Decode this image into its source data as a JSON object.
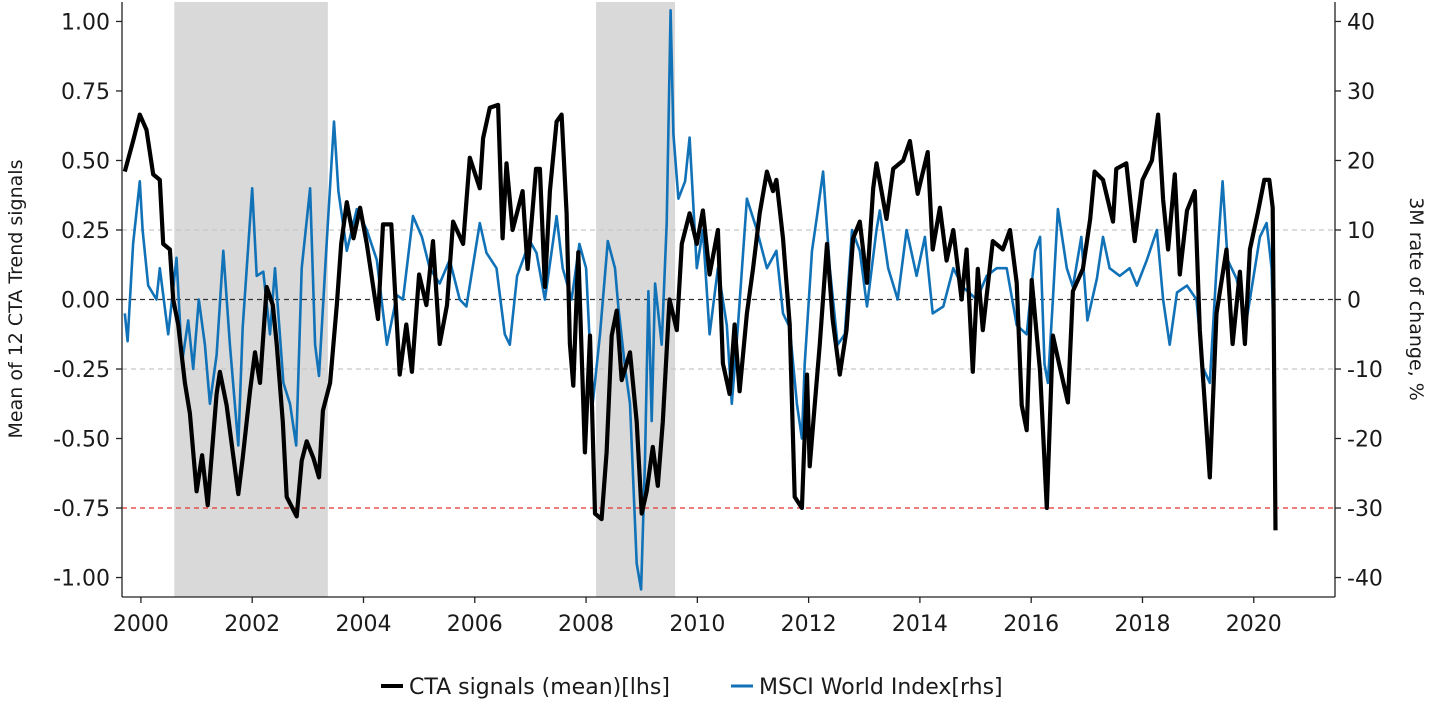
{
  "chart_data": {
    "type": "line",
    "title": "",
    "xlabel": "",
    "ylabel_left": "Mean of 12 CTA Trend signals",
    "ylabel_right": "3M rate of change, %",
    "xlim": [
      1999.66,
      2021.46
    ],
    "ylim_left": [
      -1.07,
      1.07
    ],
    "ylim_right": [
      -42.8,
      42.8
    ],
    "x_ticks": [
      "2000",
      "2002",
      "2004",
      "2006",
      "2008",
      "2010",
      "2012",
      "2014",
      "2016",
      "2018",
      "2020"
    ],
    "y_ticks_left": [
      "-1.00",
      "-0.75",
      "-0.50",
      "-0.25",
      "0.00",
      "0.25",
      "0.50",
      "0.75",
      "1.00"
    ],
    "y_ticks_right": [
      "-40",
      "-30",
      "-20",
      "-10",
      "0",
      "10",
      "20",
      "30",
      "40"
    ],
    "grid": false,
    "legend_position": "bottom",
    "reference_lines_left": [
      {
        "y": 0.25,
        "color": "#c8c8c8",
        "style": "dashed"
      },
      {
        "y": -0.25,
        "color": "#c8c8c8",
        "style": "dashed"
      },
      {
        "y": 0.0,
        "color": "#333333",
        "style": "dashed"
      },
      {
        "y": -0.75,
        "color": "#e8312f",
        "style": "dashed"
      }
    ],
    "shaded_periods": [
      {
        "start": 2000.6,
        "end": 2003.36,
        "color": "#d9d9d9"
      },
      {
        "start": 2008.18,
        "end": 2009.6,
        "color": "#d9d9d9"
      }
    ],
    "series": [
      {
        "name": "CTA signals (mean)[lhs]",
        "axis": "left",
        "color": "#000000",
        "x": [
          1999.71,
          1999.86,
          1999.98,
          2000.1,
          2000.22,
          2000.34,
          2000.4,
          2000.52,
          2000.58,
          2000.67,
          2000.79,
          2000.88,
          2001.0,
          2001.1,
          2001.2,
          2001.36,
          2001.42,
          2001.54,
          2001.75,
          2001.83,
          2001.96,
          2002.05,
          2002.14,
          2002.26,
          2002.37,
          2002.44,
          2002.55,
          2002.62,
          2002.8,
          2002.89,
          2002.98,
          2003.1,
          2003.2,
          2003.27,
          2003.4,
          2003.52,
          2003.6,
          2003.7,
          2003.82,
          2003.94,
          2004.06,
          2004.26,
          2004.35,
          2004.5,
          2004.65,
          2004.77,
          2004.87,
          2005.0,
          2005.13,
          2005.25,
          2005.37,
          2005.5,
          2005.61,
          2005.79,
          2005.91,
          2006.09,
          2006.15,
          2006.27,
          2006.42,
          2006.5,
          2006.57,
          2006.68,
          2006.86,
          2006.95,
          2007.1,
          2007.17,
          2007.26,
          2007.35,
          2007.47,
          2007.56,
          2007.65,
          2007.71,
          2007.77,
          2007.86,
          2007.98,
          2008.07,
          2008.16,
          2008.28,
          2008.37,
          2008.46,
          2008.55,
          2008.64,
          2008.79,
          2008.91,
          2009.0,
          2009.09,
          2009.2,
          2009.29,
          2009.38,
          2009.5,
          2009.63,
          2009.72,
          2009.86,
          2009.99,
          2010.1,
          2010.22,
          2010.37,
          2010.46,
          2010.58,
          2010.67,
          2010.76,
          2010.89,
          2011.0,
          2011.12,
          2011.25,
          2011.36,
          2011.42,
          2011.54,
          2011.66,
          2011.75,
          2011.88,
          2011.97,
          2012.02,
          2012.11,
          2012.2,
          2012.33,
          2012.43,
          2012.56,
          2012.68,
          2012.8,
          2012.92,
          2013.05,
          2013.16,
          2013.22,
          2013.4,
          2013.52,
          2013.7,
          2013.82,
          2013.96,
          2014.14,
          2014.23,
          2014.36,
          2014.48,
          2014.6,
          2014.75,
          2014.84,
          2014.95,
          2015.04,
          2015.13,
          2015.31,
          2015.49,
          2015.62,
          2015.74,
          2015.83,
          2015.92,
          2016.01,
          2016.16,
          2016.28,
          2016.39,
          2016.51,
          2016.66,
          2016.75,
          2016.93,
          2017.06,
          2017.14,
          2017.29,
          2017.47,
          2017.53,
          2017.71,
          2017.86,
          2018.0,
          2018.17,
          2018.28,
          2018.37,
          2018.46,
          2018.58,
          2018.67,
          2018.8,
          2018.94,
          2019.03,
          2019.21,
          2019.33,
          2019.51,
          2019.62,
          2019.75,
          2019.84,
          2019.93,
          2020.07,
          2020.19,
          2020.28,
          2020.34,
          2020.37,
          2020.39
        ],
        "y": [
          0.46,
          0.57,
          0.665,
          0.61,
          0.45,
          0.43,
          0.2,
          0.18,
          0.0,
          -0.09,
          -0.3,
          -0.41,
          -0.69,
          -0.56,
          -0.74,
          -0.34,
          -0.26,
          -0.38,
          -0.7,
          -0.57,
          -0.33,
          -0.19,
          -0.3,
          0.045,
          -0.02,
          -0.16,
          -0.44,
          -0.71,
          -0.78,
          -0.58,
          -0.51,
          -0.57,
          -0.64,
          -0.4,
          -0.3,
          -0.02,
          0.2,
          0.35,
          0.22,
          0.33,
          0.2,
          -0.07,
          0.27,
          0.27,
          -0.27,
          -0.09,
          -0.26,
          0.09,
          -0.02,
          0.21,
          -0.16,
          -0.02,
          0.28,
          0.2,
          0.51,
          0.4,
          0.58,
          0.69,
          0.7,
          0.22,
          0.49,
          0.25,
          0.39,
          0.11,
          0.47,
          0.47,
          0.045,
          0.39,
          0.64,
          0.665,
          0.31,
          -0.16,
          -0.31,
          0.17,
          -0.55,
          -0.13,
          -0.77,
          -0.79,
          -0.55,
          -0.13,
          -0.04,
          -0.29,
          -0.19,
          -0.44,
          -0.77,
          -0.69,
          -0.53,
          -0.67,
          -0.44,
          0.0,
          -0.11,
          0.2,
          0.31,
          0.2,
          0.32,
          0.09,
          0.25,
          -0.23,
          -0.34,
          -0.09,
          -0.33,
          -0.05,
          0.11,
          0.31,
          0.46,
          0.39,
          0.43,
          0.22,
          -0.09,
          -0.71,
          -0.75,
          -0.27,
          -0.6,
          -0.38,
          -0.16,
          0.2,
          -0.07,
          -0.27,
          -0.11,
          0.22,
          0.28,
          0.06,
          0.4,
          0.49,
          0.29,
          0.47,
          0.5,
          0.57,
          0.38,
          0.53,
          0.18,
          0.33,
          0.14,
          0.25,
          0.0,
          0.18,
          -0.26,
          0.11,
          -0.11,
          0.21,
          0.18,
          0.25,
          0.06,
          -0.38,
          -0.47,
          0.07,
          -0.26,
          -0.75,
          -0.13,
          -0.24,
          -0.37,
          0.03,
          0.11,
          0.29,
          0.46,
          0.43,
          0.28,
          0.47,
          0.49,
          0.21,
          0.43,
          0.5,
          0.665,
          0.36,
          0.18,
          0.45,
          0.09,
          0.32,
          0.39,
          -0.11,
          -0.64,
          -0.05,
          0.18,
          -0.16,
          0.1,
          -0.16,
          0.18,
          0.31,
          0.43,
          0.43,
          0.33,
          -0.33,
          -0.83
        ]
      },
      {
        "name": "MSCI World Index[rhs]",
        "axis": "right",
        "color": "#1172b8",
        "x": [
          1999.71,
          1999.76,
          1999.86,
          1999.98,
          2000.03,
          2000.13,
          2000.28,
          2000.34,
          2000.49,
          2000.64,
          2000.74,
          2000.85,
          2000.94,
          2001.04,
          2001.15,
          2001.24,
          2001.36,
          2001.48,
          2001.6,
          2001.75,
          2001.83,
          2002.0,
          2002.08,
          2002.2,
          2002.32,
          2002.41,
          2002.56,
          2002.68,
          2002.79,
          2002.89,
          2003.04,
          2003.13,
          2003.2,
          2003.33,
          2003.47,
          2003.55,
          2003.7,
          2003.88,
          2004.06,
          2004.24,
          2004.42,
          2004.6,
          2004.71,
          2004.89,
          2005.05,
          2005.19,
          2005.37,
          2005.55,
          2005.73,
          2005.85,
          2006.09,
          2006.21,
          2006.39,
          2006.54,
          2006.63,
          2006.76,
          2006.99,
          2007.11,
          2007.26,
          2007.47,
          2007.58,
          2007.74,
          2007.88,
          2008.0,
          2008.12,
          2008.25,
          2008.39,
          2008.52,
          2008.58,
          2008.7,
          2008.79,
          2008.91,
          2008.99,
          2009.06,
          2009.12,
          2009.18,
          2009.24,
          2009.36,
          2009.45,
          2009.52,
          2009.57,
          2009.66,
          2009.78,
          2009.86,
          2009.99,
          2010.1,
          2010.22,
          2010.37,
          2010.53,
          2010.62,
          2010.73,
          2010.89,
          2011.07,
          2011.25,
          2011.42,
          2011.54,
          2011.66,
          2011.79,
          2011.88,
          2011.93,
          2012.06,
          2012.15,
          2012.26,
          2012.38,
          2012.52,
          2012.65,
          2012.78,
          2012.92,
          2013.05,
          2013.22,
          2013.28,
          2013.43,
          2013.6,
          2013.76,
          2013.94,
          2014.09,
          2014.23,
          2014.42,
          2014.6,
          2014.77,
          2015.02,
          2015.2,
          2015.38,
          2015.56,
          2015.74,
          2015.92,
          2016.07,
          2016.16,
          2016.24,
          2016.3,
          2016.39,
          2016.48,
          2016.64,
          2016.75,
          2016.9,
          2017.01,
          2017.18,
          2017.29,
          2017.41,
          2017.59,
          2017.77,
          2017.9,
          2018.08,
          2018.26,
          2018.37,
          2018.49,
          2018.62,
          2018.8,
          2018.97,
          2019.08,
          2019.21,
          2019.33,
          2019.44,
          2019.53,
          2019.69,
          2019.87,
          2020.02,
          2020.11,
          2020.23,
          2020.32,
          2020.37
        ],
        "y": [
          -2,
          -6,
          8,
          17,
          10,
          2,
          0,
          4.5,
          -5,
          6,
          -9,
          -3,
          -10,
          0,
          -6.5,
          -15,
          -8,
          7,
          -6.5,
          -21,
          -4,
          16,
          3.4,
          4,
          -5,
          4.5,
          -12,
          -15,
          -21,
          4.5,
          16,
          -6.5,
          -11,
          7,
          25.6,
          15.6,
          7,
          13,
          10,
          5.7,
          -6.5,
          0.6,
          0,
          12,
          9,
          4.5,
          2.3,
          5.7,
          0,
          -1,
          11,
          6.7,
          4.5,
          -5,
          -6.5,
          3.4,
          8.4,
          6.7,
          0,
          12,
          4.5,
          0,
          8,
          4.5,
          -15,
          -5,
          8.4,
          4.5,
          -1,
          -9.7,
          -15,
          -38,
          -41.7,
          -23,
          1.2,
          -17.5,
          2.3,
          -6.5,
          11,
          41.6,
          23.8,
          14.5,
          17,
          23.3,
          4.5,
          10,
          -5,
          4.5,
          -3.7,
          -15,
          -3.7,
          14.5,
          10,
          4.5,
          7,
          -2,
          -4,
          -15,
          -20,
          -9.3,
          7,
          12,
          18.4,
          4.5,
          -6.5,
          -5,
          10,
          7,
          -1,
          10,
          12.8,
          4.5,
          0,
          10,
          3.4,
          9,
          -2,
          -1,
          4.5,
          1.8,
          0,
          3.4,
          4.5,
          4.5,
          -3.7,
          -5,
          7,
          9,
          -9.3,
          -12,
          0,
          13,
          4.5,
          1.8,
          9,
          -3,
          3,
          9,
          4.5,
          3.4,
          4.5,
          2,
          5.7,
          10,
          0,
          -6.5,
          1,
          2,
          0,
          -9.7,
          -12,
          4.5,
          17,
          5.7,
          3,
          -3,
          4.5,
          9,
          11,
          4.5,
          -9
        ]
      }
    ]
  },
  "legend": {
    "items": [
      {
        "label": "CTA signals (mean)[lhs]",
        "color": "#000000"
      },
      {
        "label": "MSCI World Index[rhs]",
        "color": "#1172b8"
      }
    ]
  }
}
